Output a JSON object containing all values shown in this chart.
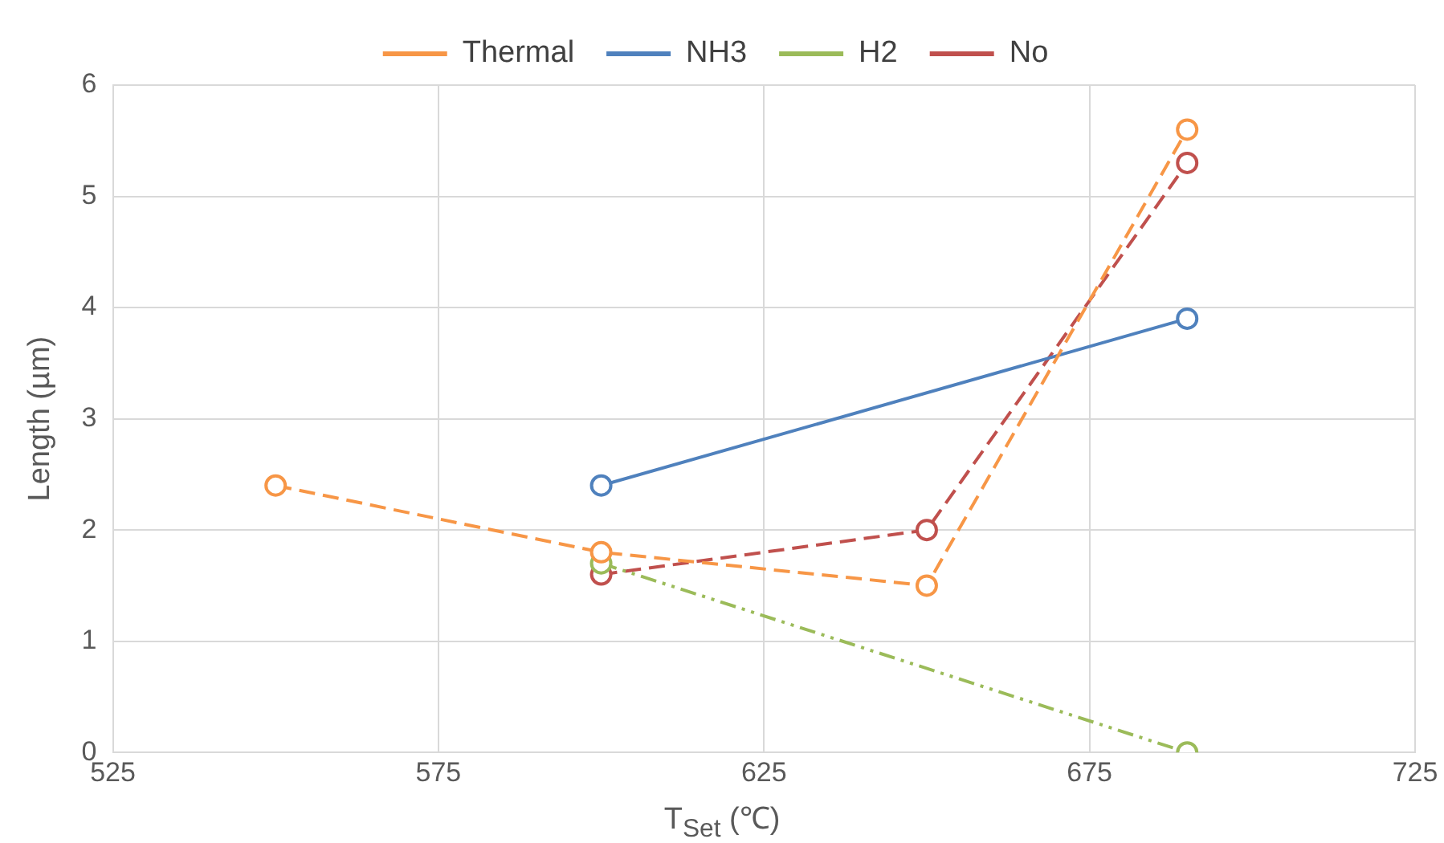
{
  "chart_data": {
    "type": "line",
    "xlabel": "T$_{Set}$ (℃)",
    "ylabel": "Length (µm)",
    "xlim": [
      525,
      725
    ],
    "xticks": [
      525,
      575,
      625,
      675,
      725
    ],
    "ylim": [
      0,
      6
    ],
    "yticks": [
      0,
      1,
      2,
      3,
      4,
      5,
      6
    ],
    "grid": true,
    "legend": "top",
    "marker": "circle",
    "series": [
      {
        "name": "Thermal",
        "color": "#f79646",
        "line_style": "dashed",
        "x": [
          550,
          600,
          650,
          690
        ],
        "values": [
          2.4,
          1.8,
          1.5,
          5.6
        ]
      },
      {
        "name": "NH3",
        "color": "#4f81bd",
        "line_style": "solid",
        "x": [
          600,
          690
        ],
        "values": [
          2.4,
          3.9
        ]
      },
      {
        "name": "H2",
        "color": "#9bbb59",
        "line_style": "dotted",
        "x": [
          600,
          690
        ],
        "values": [
          1.7,
          0
        ]
      },
      {
        "name": "No",
        "color": "#c0504d",
        "line_style": "dashed",
        "x": [
          600,
          650,
          690
        ],
        "values": [
          1.6,
          2.0,
          5.3
        ]
      }
    ]
  }
}
